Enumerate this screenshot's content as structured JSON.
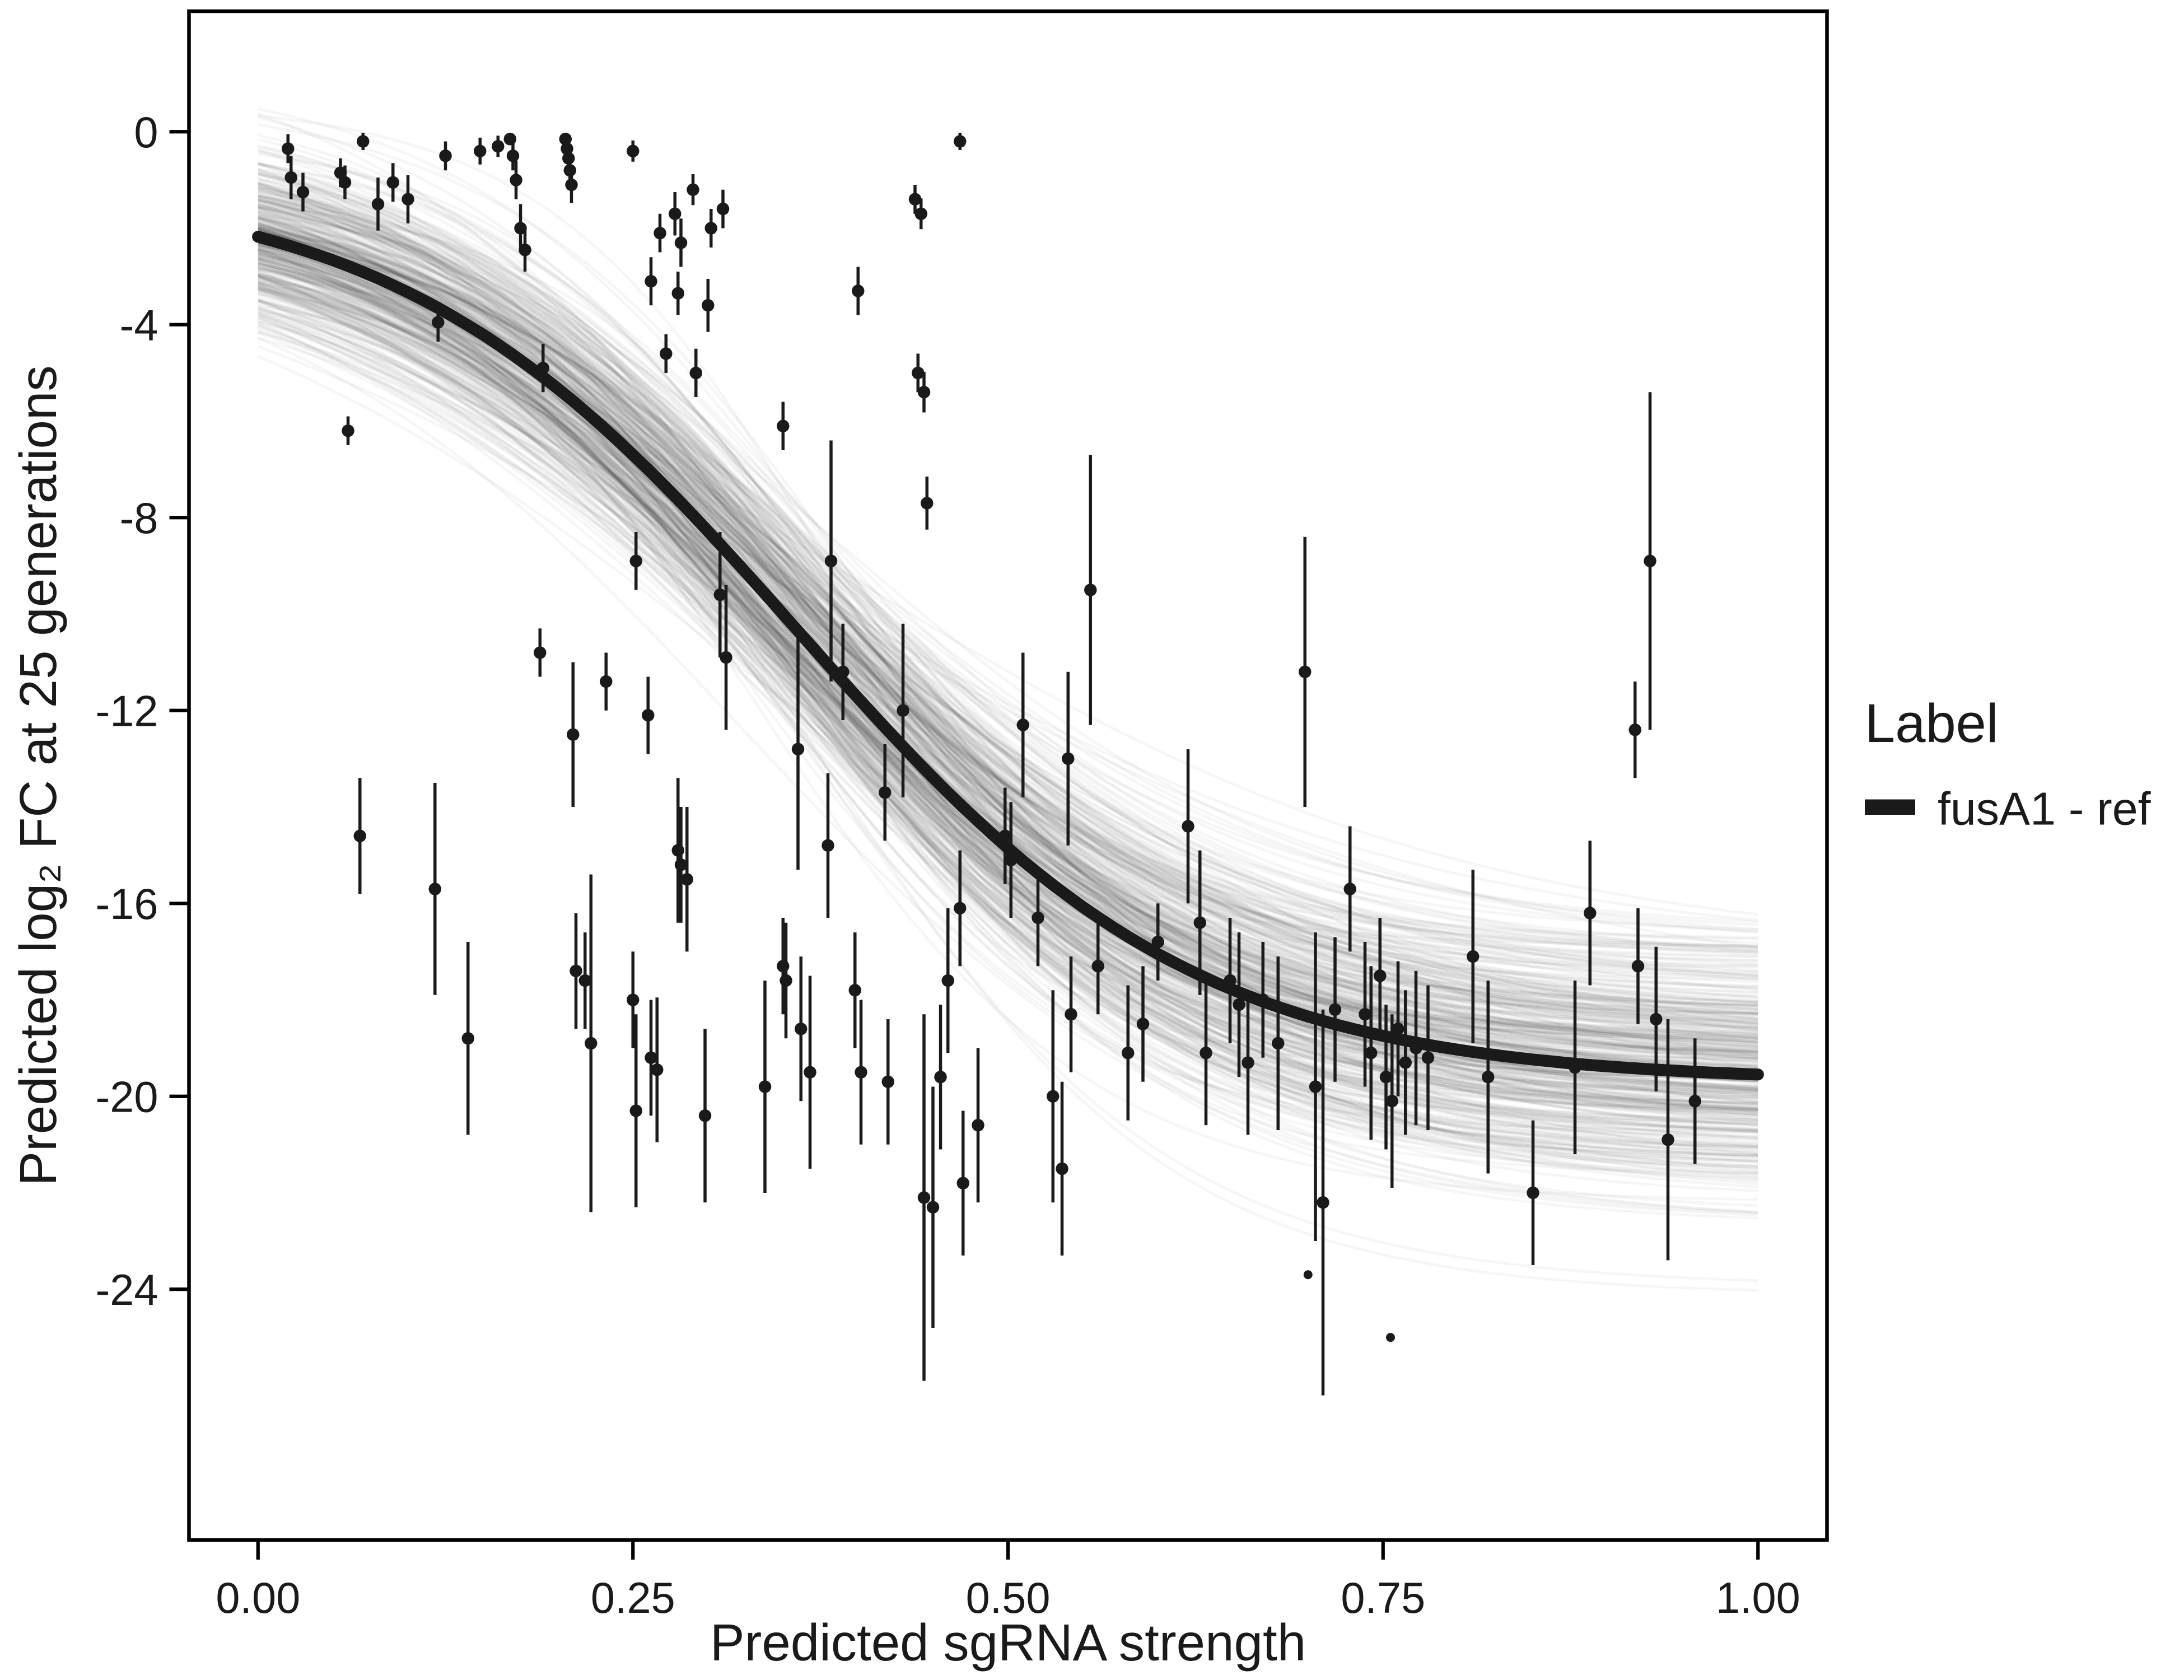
{
  "chart_data": {
    "type": "scatter",
    "title": "",
    "xlabel": "Predicted sgRNA strength",
    "ylabel": "Predicted  log₂ FC at 25 generations",
    "xlim": [
      -0.046,
      1.046
    ],
    "ylim": [
      -29.2,
      2.5
    ],
    "x_ticks": [
      0,
      0.25,
      0.5,
      0.75,
      1.0
    ],
    "x_tick_labels": [
      "0.00",
      "0.25",
      "0.50",
      "0.75",
      "1.00"
    ],
    "y_ticks": [
      0,
      -4,
      -8,
      -12,
      -16,
      -20,
      -24
    ],
    "y_tick_labels": [
      "0",
      "-4",
      "-8",
      "-12",
      "-16",
      "-20",
      "-24"
    ],
    "grid": false,
    "panel_border_color": "#000000",
    "legend": {
      "title": "Label",
      "position": "right",
      "items": [
        {
          "label": "fusA1 - ref",
          "color": "#1a1a1a",
          "glyph": "thick-line"
        }
      ]
    },
    "fit_curve": {
      "model": "logistic",
      "top": -1.0,
      "bottom": -19.7,
      "x0": 0.36,
      "k": 7.5,
      "color": "#1a1a1a",
      "width": 8.5
    },
    "uncertainty_draws": {
      "count": 400,
      "seed": 42,
      "sigma": {
        "top": 0.85,
        "bottom": 1.35,
        "x0": 0.022,
        "k": 1.1
      },
      "color": "#000000",
      "opacity": 0.035,
      "width": 2
    },
    "points": {
      "color": "#1a1a1a",
      "radius": 4.5,
      "errorbar_width": 2.2,
      "columns": [
        "x",
        "y",
        "error_halfwidth"
      ],
      "data": [
        [
          0.02,
          -0.35,
          0.3
        ],
        [
          0.022,
          -0.95,
          0.45
        ],
        [
          0.03,
          -1.25,
          0.4
        ],
        [
          0.055,
          -0.85,
          0.3
        ],
        [
          0.058,
          -1.05,
          0.35
        ],
        [
          0.07,
          -0.2,
          0.18
        ],
        [
          0.08,
          -1.5,
          0.55
        ],
        [
          0.09,
          -1.05,
          0.4
        ],
        [
          0.1,
          -1.4,
          0.5
        ],
        [
          0.125,
          -0.5,
          0.3
        ],
        [
          0.148,
          -0.4,
          0.28
        ],
        [
          0.16,
          -0.3,
          0.22
        ],
        [
          0.168,
          -0.15,
          0.12
        ],
        [
          0.17,
          -0.5,
          0.3
        ],
        [
          0.172,
          -1.0,
          0.4
        ],
        [
          0.175,
          -2.0,
          0.5
        ],
        [
          0.178,
          -2.45,
          0.45
        ],
        [
          0.205,
          -0.15,
          0.12
        ],
        [
          0.206,
          -0.35,
          0.18
        ],
        [
          0.207,
          -0.55,
          0.25
        ],
        [
          0.208,
          -0.8,
          0.3
        ],
        [
          0.209,
          -1.1,
          0.38
        ],
        [
          0.25,
          -0.4,
          0.22
        ],
        [
          0.268,
          -2.1,
          0.4
        ],
        [
          0.278,
          -1.7,
          0.45
        ],
        [
          0.282,
          -2.3,
          0.5
        ],
        [
          0.29,
          -1.2,
          0.32
        ],
        [
          0.262,
          -3.1,
          0.5
        ],
        [
          0.28,
          -3.35,
          0.45
        ],
        [
          0.3,
          -3.6,
          0.55
        ],
        [
          0.272,
          -4.6,
          0.4
        ],
        [
          0.292,
          -5.0,
          0.5
        ],
        [
          0.12,
          -3.95,
          0.4
        ],
        [
          0.19,
          -4.9,
          0.5
        ],
        [
          0.06,
          -6.2,
          0.3
        ],
        [
          0.302,
          -2.0,
          0.4
        ],
        [
          0.31,
          -1.6,
          0.4
        ],
        [
          0.35,
          -6.1,
          0.5
        ],
        [
          0.4,
          -3.3,
          0.5
        ],
        [
          0.438,
          -1.4,
          0.3
        ],
        [
          0.442,
          -1.7,
          0.32
        ],
        [
          0.44,
          -5.0,
          0.4
        ],
        [
          0.444,
          -5.4,
          0.42
        ],
        [
          0.446,
          -7.7,
          0.55
        ],
        [
          0.468,
          -0.2,
          0.18
        ],
        [
          0.068,
          -14.6,
          1.2
        ],
        [
          0.118,
          -15.7,
          2.2
        ],
        [
          0.14,
          -18.8,
          2.0
        ],
        [
          0.188,
          -10.8,
          0.5
        ],
        [
          0.21,
          -12.5,
          1.5
        ],
        [
          0.212,
          -17.4,
          1.2
        ],
        [
          0.218,
          -17.6,
          1.0
        ],
        [
          0.222,
          -18.9,
          3.5
        ],
        [
          0.232,
          -11.4,
          0.6
        ],
        [
          0.252,
          -8.9,
          0.6
        ],
        [
          0.25,
          -18.0,
          1.0
        ],
        [
          0.252,
          -20.3,
          2.0
        ],
        [
          0.26,
          -12.1,
          0.8
        ],
        [
          0.262,
          -19.2,
          1.2
        ],
        [
          0.266,
          -19.45,
          1.5
        ],
        [
          0.28,
          -14.9,
          1.5
        ],
        [
          0.282,
          -15.2,
          1.2
        ],
        [
          0.286,
          -15.5,
          1.5
        ],
        [
          0.298,
          -20.4,
          1.8
        ],
        [
          0.308,
          -9.6,
          1.3
        ],
        [
          0.312,
          -10.9,
          1.5
        ],
        [
          0.338,
          -19.8,
          2.2
        ],
        [
          0.35,
          -17.3,
          1.0
        ],
        [
          0.352,
          -17.6,
          1.2
        ],
        [
          0.36,
          -12.8,
          2.5
        ],
        [
          0.362,
          -18.6,
          1.5
        ],
        [
          0.368,
          -19.5,
          2.0
        ],
        [
          0.382,
          -8.9,
          2.5
        ],
        [
          0.38,
          -14.8,
          1.5
        ],
        [
          0.39,
          -11.2,
          1.0
        ],
        [
          0.398,
          -17.8,
          1.2
        ],
        [
          0.402,
          -19.5,
          1.5
        ],
        [
          0.418,
          -13.7,
          1.0
        ],
        [
          0.42,
          -19.7,
          1.3
        ],
        [
          0.43,
          -12.0,
          1.8
        ],
        [
          0.444,
          -22.1,
          3.8
        ],
        [
          0.45,
          -22.3,
          2.5
        ],
        [
          0.455,
          -19.6,
          1.5
        ],
        [
          0.46,
          -17.6,
          1.5
        ],
        [
          0.468,
          -16.1,
          1.2
        ],
        [
          0.47,
          -21.8,
          1.5
        ],
        [
          0.48,
          -20.6,
          1.6
        ],
        [
          0.498,
          -14.6,
          1.0
        ],
        [
          0.502,
          -15.1,
          1.2
        ],
        [
          0.51,
          -12.3,
          1.5
        ],
        [
          0.52,
          -16.3,
          1.0
        ],
        [
          0.53,
          -20.0,
          2.2
        ],
        [
          0.536,
          -21.5,
          1.8
        ],
        [
          0.54,
          -13.0,
          1.8
        ],
        [
          0.542,
          -18.3,
          1.2
        ],
        [
          0.555,
          -9.5,
          2.8
        ],
        [
          0.56,
          -17.3,
          1.0
        ],
        [
          0.58,
          -19.1,
          1.4
        ],
        [
          0.59,
          -18.5,
          1.2
        ],
        [
          0.6,
          -16.8,
          0.8
        ],
        [
          0.62,
          -14.4,
          1.6
        ],
        [
          0.628,
          -16.4,
          1.5
        ],
        [
          0.632,
          -19.1,
          1.5
        ],
        [
          0.648,
          -17.6,
          1.3
        ],
        [
          0.654,
          -18.1,
          1.5
        ],
        [
          0.66,
          -19.3,
          1.5
        ],
        [
          0.67,
          -18.0,
          1.2
        ],
        [
          0.68,
          -18.9,
          1.8
        ],
        [
          0.698,
          -11.2,
          2.8
        ],
        [
          0.7,
          -23.7,
          0
        ],
        [
          0.705,
          -19.8,
          3.2
        ],
        [
          0.71,
          -22.2,
          4.0
        ],
        [
          0.718,
          -18.2,
          1.5
        ],
        [
          0.728,
          -15.7,
          1.3
        ],
        [
          0.738,
          -18.3,
          1.5
        ],
        [
          0.742,
          -19.1,
          1.8
        ],
        [
          0.748,
          -17.5,
          1.2
        ],
        [
          0.752,
          -19.6,
          1.5
        ],
        [
          0.756,
          -20.1,
          1.8
        ],
        [
          0.755,
          -25.0,
          0
        ],
        [
          0.76,
          -18.6,
          1.4
        ],
        [
          0.765,
          -19.3,
          1.5
        ],
        [
          0.772,
          -19.0,
          1.6
        ],
        [
          0.78,
          -19.2,
          1.5
        ],
        [
          0.81,
          -17.1,
          1.8
        ],
        [
          0.82,
          -19.6,
          2.0
        ],
        [
          0.85,
          -22.0,
          1.5
        ],
        [
          0.878,
          -19.4,
          1.8
        ],
        [
          0.888,
          -16.2,
          1.5
        ],
        [
          0.918,
          -12.4,
          1.0
        ],
        [
          0.92,
          -17.3,
          1.2
        ],
        [
          0.928,
          -8.9,
          3.5
        ],
        [
          0.932,
          -18.4,
          1.5
        ],
        [
          0.94,
          -20.9,
          2.5
        ],
        [
          0.958,
          -20.1,
          1.3
        ]
      ]
    }
  }
}
